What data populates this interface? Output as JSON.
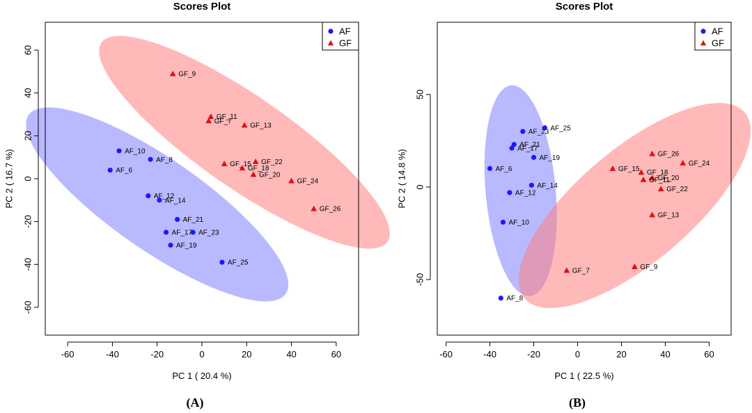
{
  "colors": {
    "AF": "#1a1aff",
    "GF": "#e01010",
    "AF_ellipse": "#8080ff",
    "GF_ellipse": "#ff8080"
  },
  "chart_data": [
    {
      "panel_label": "(A)",
      "type": "scatter",
      "title": "Scores Plot",
      "xlabel": "PC 1 ( 20.4 %)",
      "ylabel": "PC 2 ( 16.7 %)",
      "xlim": [
        -70,
        70
      ],
      "ylim": [
        -73,
        73
      ],
      "xticks": [
        -60,
        -40,
        -20,
        0,
        20,
        40,
        60
      ],
      "yticks": [
        -60,
        -40,
        -20,
        0,
        20,
        40,
        60
      ],
      "legend": {
        "position": "top-right",
        "entries": [
          "AF",
          "GF"
        ]
      },
      "series": [
        {
          "name": "AF",
          "marker": "circle",
          "points": [
            {
              "label": "AF_6",
              "x": -41,
              "y": 4
            },
            {
              "label": "AF_8",
              "x": -23,
              "y": 9
            },
            {
              "label": "AF_10",
              "x": -37,
              "y": 13
            },
            {
              "label": "AF_12",
              "x": -24,
              "y": -8
            },
            {
              "label": "AF_14",
              "x": -19,
              "y": -10
            },
            {
              "label": "AF_17",
              "x": -16,
              "y": -25
            },
            {
              "label": "AF_19",
              "x": -14,
              "y": -31
            },
            {
              "label": "AF_21",
              "x": -11,
              "y": -19
            },
            {
              "label": "AF_23",
              "x": -4,
              "y": -25
            },
            {
              "label": "AF_25",
              "x": 9,
              "y": -39
            }
          ],
          "ellipse": {
            "cx": -20,
            "cy": -12,
            "rx": 71,
            "ry": 21,
            "angle_deg": -36
          }
        },
        {
          "name": "GF",
          "marker": "triangle",
          "points": [
            {
              "label": "GF_9",
              "x": -13,
              "y": 49
            },
            {
              "label": "GF_11",
              "x": 4,
              "y": 29
            },
            {
              "label": "GF_7",
              "x": 3,
              "y": 27
            },
            {
              "label": "GF_13",
              "x": 19,
              "y": 25
            },
            {
              "label": "GF_15",
              "x": 10,
              "y": 7
            },
            {
              "label": "GF_22",
              "x": 24,
              "y": 8
            },
            {
              "label": "GF_18",
              "x": 18,
              "y": 5
            },
            {
              "label": "GF_20",
              "x": 23,
              "y": 2
            },
            {
              "label": "GF_24",
              "x": 40,
              "y": -1
            },
            {
              "label": "GF_26",
              "x": 50,
              "y": -14
            }
          ],
          "ellipse": {
            "cx": 19,
            "cy": 17,
            "rx": 79,
            "ry": 21,
            "angle_deg": -36
          }
        }
      ]
    },
    {
      "panel_label": "(B)",
      "type": "scatter",
      "title": "Scores Plot",
      "xlabel": "PC 1 ( 22.5 %)",
      "ylabel": "PC 2 ( 14.8 %)",
      "xlim": [
        -64,
        70
      ],
      "ylim": [
        -80,
        89
      ],
      "xticks": [
        -60,
        -40,
        -20,
        0,
        20,
        40,
        60
      ],
      "yticks": [
        -50,
        0,
        50
      ],
      "legend": {
        "position": "top-right",
        "entries": [
          "AF",
          "GF"
        ]
      },
      "series": [
        {
          "name": "AF",
          "marker": "circle",
          "points": [
            {
              "label": "AF_25",
              "x": -15,
              "y": 32
            },
            {
              "label": "AF_23",
              "x": -25,
              "y": 30
            },
            {
              "label": "AF_21",
              "x": -29,
              "y": 23
            },
            {
              "label": "AF_17",
              "x": -30,
              "y": 21
            },
            {
              "label": "AF_19",
              "x": -20,
              "y": 16
            },
            {
              "label": "AF_6",
              "x": -40,
              "y": 10
            },
            {
              "label": "AF_14",
              "x": -21,
              "y": 1
            },
            {
              "label": "AF_12",
              "x": -31,
              "y": -3
            },
            {
              "label": "AF_10",
              "x": -34,
              "y": -19
            },
            {
              "label": "AF_8",
              "x": -35,
              "y": -60
            }
          ],
          "ellipse": {
            "cx": -26,
            "cy": -2,
            "rx": 16,
            "ry": 57,
            "angle_deg": 6
          }
        },
        {
          "name": "GF",
          "marker": "triangle",
          "points": [
            {
              "label": "GF_26",
              "x": 34,
              "y": 18
            },
            {
              "label": "GF_24",
              "x": 48,
              "y": 13
            },
            {
              "label": "GF_15",
              "x": 16,
              "y": 10
            },
            {
              "label": "GF_18",
              "x": 29,
              "y": 8
            },
            {
              "label": "GF_20",
              "x": 34,
              "y": 5
            },
            {
              "label": "GF_11",
              "x": 30,
              "y": 4
            },
            {
              "label": "GF_22",
              "x": 38,
              "y": -1
            },
            {
              "label": "GF_13",
              "x": 34,
              "y": -15
            },
            {
              "label": "GF_9",
              "x": 26,
              "y": -43
            },
            {
              "label": "GF_7",
              "x": -5,
              "y": -45
            }
          ],
          "ellipse": {
            "cx": 26,
            "cy": -10,
            "rx": 71,
            "ry": 28,
            "angle_deg": 45
          }
        }
      ]
    }
  ]
}
